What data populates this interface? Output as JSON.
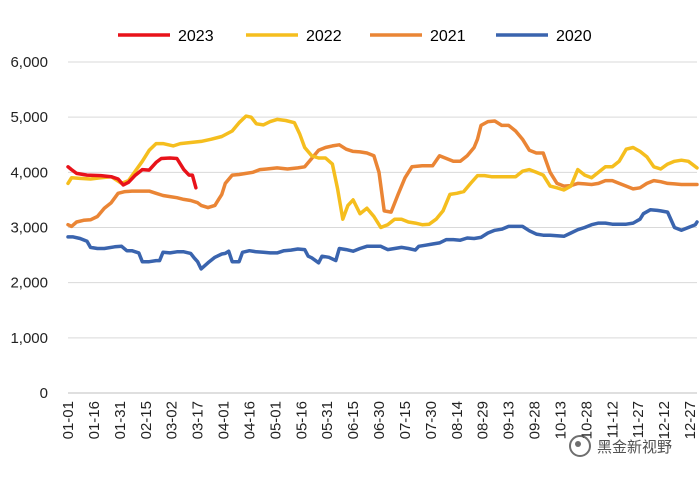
{
  "chart_data": {
    "type": "line",
    "title": "",
    "xlabel": "",
    "ylabel": "",
    "ylim": [
      0,
      6000
    ],
    "yticks": [
      0,
      1000,
      2000,
      3000,
      4000,
      5000,
      6000
    ],
    "ytick_labels": [
      "0",
      "1,000",
      "2,000",
      "3,000",
      "4,000",
      "5,000",
      "6,000"
    ],
    "xtick_labels": [
      "01-01",
      "01-16",
      "01-31",
      "02-15",
      "03-02",
      "03-17",
      "04-01",
      "04-16",
      "05-01",
      "05-16",
      "05-31",
      "06-15",
      "06-30",
      "07-15",
      "07-30",
      "08-14",
      "08-29",
      "09-13",
      "09-28",
      "10-13",
      "10-28",
      "11-12",
      "11-27",
      "12-12",
      "12-27"
    ],
    "x_unit": "day_of_year",
    "legend_position": "top",
    "grid": "horizontal",
    "series": [
      {
        "name": "2023",
        "color": "#e8121a",
        "points": [
          [
            1,
            4100
          ],
          [
            3,
            4050
          ],
          [
            6,
            3980
          ],
          [
            12,
            3950
          ],
          [
            20,
            3940
          ],
          [
            26,
            3920
          ],
          [
            30,
            3880
          ],
          [
            33,
            3770
          ],
          [
            36,
            3820
          ],
          [
            40,
            3950
          ],
          [
            44,
            4050
          ],
          [
            48,
            4040
          ],
          [
            52,
            4180
          ],
          [
            55,
            4250
          ],
          [
            60,
            4260
          ],
          [
            64,
            4250
          ],
          [
            68,
            4050
          ],
          [
            71,
            3950
          ],
          [
            73,
            3950
          ],
          [
            75,
            3720
          ]
        ]
      },
      {
        "name": "2022",
        "color": "#f5be1e",
        "points": [
          [
            1,
            3800
          ],
          [
            3,
            3900
          ],
          [
            8,
            3890
          ],
          [
            14,
            3880
          ],
          [
            20,
            3900
          ],
          [
            26,
            3920
          ],
          [
            32,
            3800
          ],
          [
            36,
            3850
          ],
          [
            44,
            4200
          ],
          [
            48,
            4400
          ],
          [
            52,
            4520
          ],
          [
            56,
            4520
          ],
          [
            62,
            4480
          ],
          [
            66,
            4520
          ],
          [
            72,
            4540
          ],
          [
            78,
            4560
          ],
          [
            84,
            4600
          ],
          [
            90,
            4650
          ],
          [
            96,
            4750
          ],
          [
            100,
            4900
          ],
          [
            104,
            5020
          ],
          [
            107,
            5000
          ],
          [
            110,
            4880
          ],
          [
            114,
            4860
          ],
          [
            118,
            4920
          ],
          [
            122,
            4960
          ],
          [
            127,
            4940
          ],
          [
            132,
            4900
          ],
          [
            135,
            4700
          ],
          [
            138,
            4450
          ],
          [
            142,
            4300
          ],
          [
            146,
            4260
          ],
          [
            150,
            4260
          ],
          [
            154,
            4150
          ],
          [
            157,
            3700
          ],
          [
            160,
            3150
          ],
          [
            163,
            3400
          ],
          [
            166,
            3500
          ],
          [
            170,
            3250
          ],
          [
            174,
            3350
          ],
          [
            178,
            3200
          ],
          [
            182,
            3000
          ],
          [
            186,
            3050
          ],
          [
            190,
            3150
          ],
          [
            194,
            3150
          ],
          [
            198,
            3100
          ],
          [
            202,
            3080
          ],
          [
            206,
            3050
          ],
          [
            210,
            3060
          ],
          [
            214,
            3150
          ],
          [
            218,
            3300
          ],
          [
            222,
            3600
          ],
          [
            226,
            3620
          ],
          [
            230,
            3650
          ],
          [
            234,
            3800
          ],
          [
            238,
            3940
          ],
          [
            242,
            3940
          ],
          [
            246,
            3920
          ],
          [
            250,
            3920
          ],
          [
            256,
            3920
          ],
          [
            260,
            3920
          ],
          [
            264,
            4020
          ],
          [
            268,
            4050
          ],
          [
            272,
            4000
          ],
          [
            276,
            3950
          ],
          [
            280,
            3750
          ],
          [
            284,
            3720
          ],
          [
            288,
            3680
          ],
          [
            292,
            3750
          ],
          [
            296,
            4050
          ],
          [
            300,
            3950
          ],
          [
            304,
            3900
          ],
          [
            308,
            4000
          ],
          [
            312,
            4100
          ],
          [
            316,
            4100
          ],
          [
            320,
            4200
          ],
          [
            324,
            4420
          ],
          [
            328,
            4450
          ],
          [
            332,
            4380
          ],
          [
            336,
            4280
          ],
          [
            340,
            4100
          ],
          [
            344,
            4060
          ],
          [
            348,
            4150
          ],
          [
            352,
            4200
          ],
          [
            356,
            4220
          ],
          [
            360,
            4200
          ],
          [
            365,
            4080
          ]
        ]
      },
      {
        "name": "2021",
        "color": "#ea8535",
        "points": [
          [
            1,
            3050
          ],
          [
            3,
            3020
          ],
          [
            6,
            3100
          ],
          [
            10,
            3130
          ],
          [
            14,
            3140
          ],
          [
            18,
            3200
          ],
          [
            22,
            3350
          ],
          [
            26,
            3450
          ],
          [
            30,
            3620
          ],
          [
            34,
            3650
          ],
          [
            38,
            3660
          ],
          [
            44,
            3660
          ],
          [
            48,
            3660
          ],
          [
            52,
            3620
          ],
          [
            56,
            3580
          ],
          [
            60,
            3560
          ],
          [
            64,
            3540
          ],
          [
            68,
            3510
          ],
          [
            72,
            3490
          ],
          [
            76,
            3450
          ],
          [
            78,
            3400
          ],
          [
            82,
            3360
          ],
          [
            86,
            3400
          ],
          [
            88,
            3500
          ],
          [
            90,
            3600
          ],
          [
            92,
            3800
          ],
          [
            96,
            3950
          ],
          [
            100,
            3960
          ],
          [
            104,
            3980
          ],
          [
            108,
            4000
          ],
          [
            112,
            4050
          ],
          [
            116,
            4060
          ],
          [
            122,
            4080
          ],
          [
            128,
            4060
          ],
          [
            134,
            4080
          ],
          [
            138,
            4100
          ],
          [
            142,
            4250
          ],
          [
            146,
            4400
          ],
          [
            150,
            4450
          ],
          [
            154,
            4480
          ],
          [
            158,
            4500
          ],
          [
            162,
            4420
          ],
          [
            166,
            4380
          ],
          [
            170,
            4370
          ],
          [
            174,
            4350
          ],
          [
            178,
            4300
          ],
          [
            181,
            4000
          ],
          [
            184,
            3300
          ],
          [
            188,
            3280
          ],
          [
            192,
            3600
          ],
          [
            196,
            3900
          ],
          [
            200,
            4100
          ],
          [
            206,
            4120
          ],
          [
            212,
            4120
          ],
          [
            216,
            4300
          ],
          [
            220,
            4250
          ],
          [
            224,
            4200
          ],
          [
            228,
            4200
          ],
          [
            232,
            4300
          ],
          [
            236,
            4450
          ],
          [
            238,
            4600
          ],
          [
            240,
            4850
          ],
          [
            244,
            4920
          ],
          [
            248,
            4930
          ],
          [
            252,
            4850
          ],
          [
            256,
            4850
          ],
          [
            260,
            4750
          ],
          [
            264,
            4600
          ],
          [
            268,
            4400
          ],
          [
            272,
            4350
          ],
          [
            276,
            4350
          ],
          [
            280,
            4000
          ],
          [
            284,
            3800
          ],
          [
            288,
            3750
          ],
          [
            292,
            3760
          ],
          [
            296,
            3800
          ],
          [
            300,
            3790
          ],
          [
            304,
            3780
          ],
          [
            308,
            3800
          ],
          [
            312,
            3850
          ],
          [
            316,
            3850
          ],
          [
            320,
            3800
          ],
          [
            324,
            3750
          ],
          [
            328,
            3700
          ],
          [
            332,
            3720
          ],
          [
            336,
            3800
          ],
          [
            340,
            3850
          ],
          [
            344,
            3830
          ],
          [
            348,
            3800
          ],
          [
            352,
            3790
          ],
          [
            356,
            3780
          ],
          [
            360,
            3780
          ],
          [
            365,
            3780
          ]
        ]
      },
      {
        "name": "2020",
        "color": "#3a64ae",
        "points": [
          [
            1,
            2830
          ],
          [
            4,
            2830
          ],
          [
            8,
            2800
          ],
          [
            12,
            2750
          ],
          [
            14,
            2640
          ],
          [
            18,
            2620
          ],
          [
            22,
            2620
          ],
          [
            28,
            2650
          ],
          [
            32,
            2660
          ],
          [
            35,
            2580
          ],
          [
            38,
            2580
          ],
          [
            42,
            2540
          ],
          [
            44,
            2380
          ],
          [
            48,
            2380
          ],
          [
            52,
            2400
          ],
          [
            54,
            2400
          ],
          [
            56,
            2550
          ],
          [
            60,
            2540
          ],
          [
            64,
            2560
          ],
          [
            68,
            2560
          ],
          [
            72,
            2530
          ],
          [
            74,
            2450
          ],
          [
            76,
            2380
          ],
          [
            78,
            2250
          ],
          [
            82,
            2360
          ],
          [
            86,
            2460
          ],
          [
            90,
            2520
          ],
          [
            92,
            2530
          ],
          [
            94,
            2570
          ],
          [
            96,
            2380
          ],
          [
            100,
            2380
          ],
          [
            102,
            2550
          ],
          [
            106,
            2580
          ],
          [
            110,
            2560
          ],
          [
            114,
            2550
          ],
          [
            118,
            2540
          ],
          [
            122,
            2540
          ],
          [
            126,
            2580
          ],
          [
            130,
            2590
          ],
          [
            134,
            2610
          ],
          [
            138,
            2600
          ],
          [
            140,
            2480
          ],
          [
            142,
            2450
          ],
          [
            146,
            2360
          ],
          [
            148,
            2480
          ],
          [
            152,
            2460
          ],
          [
            156,
            2400
          ],
          [
            158,
            2620
          ],
          [
            162,
            2600
          ],
          [
            166,
            2570
          ],
          [
            170,
            2620
          ],
          [
            174,
            2660
          ],
          [
            178,
            2660
          ],
          [
            182,
            2660
          ],
          [
            186,
            2600
          ],
          [
            190,
            2620
          ],
          [
            194,
            2640
          ],
          [
            198,
            2620
          ],
          [
            202,
            2590
          ],
          [
            204,
            2660
          ],
          [
            208,
            2680
          ],
          [
            212,
            2700
          ],
          [
            216,
            2720
          ],
          [
            220,
            2780
          ],
          [
            224,
            2780
          ],
          [
            228,
            2770
          ],
          [
            232,
            2810
          ],
          [
            236,
            2800
          ],
          [
            240,
            2820
          ],
          [
            244,
            2900
          ],
          [
            248,
            2950
          ],
          [
            252,
            2970
          ],
          [
            256,
            3020
          ],
          [
            260,
            3020
          ],
          [
            264,
            3020
          ],
          [
            268,
            2940
          ],
          [
            272,
            2880
          ],
          [
            276,
            2860
          ],
          [
            280,
            2860
          ],
          [
            284,
            2850
          ],
          [
            288,
            2840
          ],
          [
            292,
            2900
          ],
          [
            296,
            2960
          ],
          [
            300,
            3000
          ],
          [
            304,
            3050
          ],
          [
            308,
            3080
          ],
          [
            312,
            3080
          ],
          [
            316,
            3060
          ],
          [
            320,
            3060
          ],
          [
            324,
            3060
          ],
          [
            328,
            3080
          ],
          [
            332,
            3150
          ],
          [
            334,
            3250
          ],
          [
            338,
            3320
          ],
          [
            342,
            3310
          ],
          [
            344,
            3300
          ],
          [
            348,
            3280
          ],
          [
            352,
            3000
          ],
          [
            356,
            2950
          ],
          [
            360,
            3000
          ],
          [
            364,
            3050
          ],
          [
            365,
            3100
          ]
        ]
      }
    ]
  },
  "watermark": {
    "text": "黑金新视野",
    "icon": "wechat-eye-icon"
  }
}
